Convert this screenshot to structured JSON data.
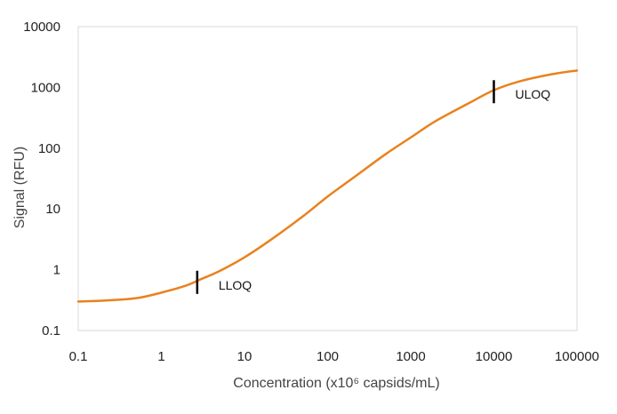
{
  "chart_data": {
    "type": "line",
    "xlabel": "Concentration (x10⁶ capsids/mL)",
    "ylabel": "Signal (RFU)",
    "x_scale": "log",
    "y_scale": "log",
    "xlim": [
      0.1,
      100000
    ],
    "ylim": [
      0.1,
      10000
    ],
    "x_ticks": [
      {
        "value": 0.1,
        "label": "0.1"
      },
      {
        "value": 1,
        "label": "1"
      },
      {
        "value": 10,
        "label": "10"
      },
      {
        "value": 100,
        "label": "100"
      },
      {
        "value": 1000,
        "label": "1000"
      },
      {
        "value": 10000,
        "label": "10000"
      },
      {
        "value": 100000,
        "label": "100000"
      }
    ],
    "y_ticks": [
      {
        "value": 0.1,
        "label": "0.1"
      },
      {
        "value": 1,
        "label": "1"
      },
      {
        "value": 10,
        "label": "10"
      },
      {
        "value": 100,
        "label": "100"
      },
      {
        "value": 1000,
        "label": "1000"
      },
      {
        "value": 10000,
        "label": "10000"
      }
    ],
    "grid": false,
    "legend": "none",
    "line_color": "#E8821E",
    "series": [
      {
        "x": [
          0.1,
          0.2,
          0.5,
          1,
          2,
          3,
          5,
          10,
          20,
          50,
          100,
          200,
          500,
          1000,
          2000,
          5000,
          10000,
          20000,
          50000,
          100000
        ],
        "y": [
          0.3,
          0.31,
          0.34,
          0.42,
          0.55,
          0.7,
          0.95,
          1.6,
          3,
          7.5,
          16,
          32,
          80,
          150,
          280,
          550,
          900,
          1250,
          1650,
          1900
        ]
      }
    ],
    "markers": [
      {
        "label": "LLOQ",
        "x": 2.7,
        "y": 0.62
      },
      {
        "label": "ULOQ",
        "x": 10000,
        "y": 850
      }
    ]
  }
}
